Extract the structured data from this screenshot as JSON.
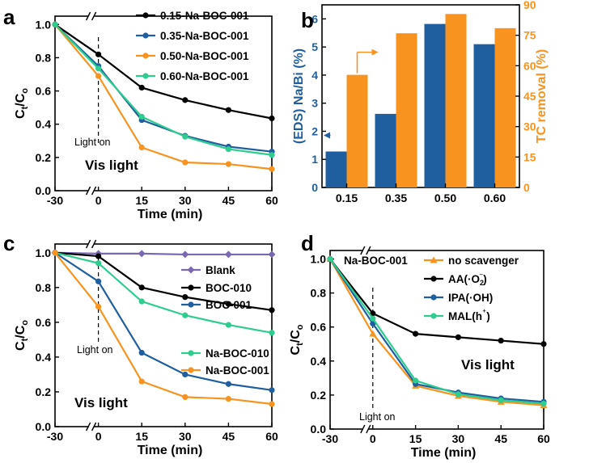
{
  "chart_data": [
    {
      "panel": "a",
      "type": "line",
      "xlabel": "Time (min)",
      "ylabel": "Ct/Co",
      "xticks": [
        "-30",
        "0",
        "15",
        "30",
        "45",
        "60"
      ],
      "yticks": [
        "0.0",
        "0.2",
        "0.4",
        "0.6",
        "0.8",
        "1.0"
      ],
      "xlim": [
        -30,
        60
      ],
      "ylim": [
        0,
        1.05
      ],
      "light_on": "Light on",
      "condition": "Vis light",
      "x": [
        -30,
        0,
        15,
        30,
        45,
        60
      ],
      "series": [
        {
          "name": "0.15-Na-BOC-001",
          "color": "#000000",
          "values": [
            1.0,
            0.82,
            0.62,
            0.545,
            0.485,
            0.435
          ]
        },
        {
          "name": "0.35-Na-BOC-001",
          "color": "#1f5fa0",
          "values": [
            1.0,
            0.75,
            0.425,
            0.33,
            0.265,
            0.235
          ]
        },
        {
          "name": "0.50-Na-BOC-001",
          "color": "#f7931e",
          "values": [
            1.0,
            0.69,
            0.26,
            0.17,
            0.16,
            0.13
          ]
        },
        {
          "name": "0.60-Na-BOC-001",
          "color": "#2ecc8f",
          "values": [
            1.0,
            0.735,
            0.445,
            0.325,
            0.25,
            0.215
          ]
        }
      ]
    },
    {
      "panel": "b",
      "type": "bar",
      "categories": [
        "0.15",
        "0.35",
        "0.50",
        "0.60"
      ],
      "ylabel_left": "(EDS) Na/Bi (%)",
      "ylabel_right": "TC removal (%)",
      "yticks_left": [
        "0",
        "1",
        "2",
        "3",
        "4",
        "5",
        "6"
      ],
      "yticks_right": [
        "0",
        "15",
        "30",
        "45",
        "60",
        "75",
        "90"
      ],
      "ylim_left": [
        0,
        6.5
      ],
      "ylim_right": [
        0,
        90
      ],
      "left_color": "#1f5fa0",
      "right_color": "#f7931e",
      "series": [
        {
          "name": "Na/Bi",
          "axis": "left",
          "values": [
            1.28,
            2.62,
            5.82,
            5.1
          ]
        },
        {
          "name": "TC removal",
          "axis": "right",
          "values": [
            55.5,
            76,
            85.5,
            78.5
          ]
        }
      ]
    },
    {
      "panel": "c",
      "type": "line",
      "xlabel": "Time (min)",
      "ylabel": "Ct/Co",
      "xticks": [
        "-30",
        "0",
        "15",
        "30",
        "45",
        "60"
      ],
      "yticks": [
        "0.0",
        "0.2",
        "0.4",
        "0.6",
        "0.8",
        "1.0"
      ],
      "xlim": [
        -30,
        60
      ],
      "ylim": [
        0,
        1.05
      ],
      "light_on": "Light on",
      "condition": "Vis light",
      "x": [
        -30,
        0,
        15,
        30,
        45,
        60
      ],
      "series": [
        {
          "name": "Blank",
          "color": "#7b68b3",
          "values": [
            1.0,
            0.995,
            0.995,
            0.99,
            0.99,
            0.99
          ]
        },
        {
          "name": "BOC-010",
          "color": "#000000",
          "values": [
            1.0,
            0.98,
            0.8,
            0.745,
            0.705,
            0.67
          ]
        },
        {
          "name": "BOC-001",
          "color": "#1f5fa0",
          "values": [
            1.0,
            0.835,
            0.425,
            0.3,
            0.245,
            0.21
          ]
        },
        {
          "name": "Na-BOC-010",
          "color": "#2ecc8f",
          "values": [
            1.0,
            0.94,
            0.72,
            0.64,
            0.585,
            0.54
          ]
        },
        {
          "name": "Na-BOC-001",
          "color": "#f7931e",
          "values": [
            1.0,
            0.69,
            0.26,
            0.17,
            0.16,
            0.13
          ]
        }
      ]
    },
    {
      "panel": "d",
      "type": "line",
      "title": "Na-BOC-001",
      "xlabel": "Time (min)",
      "ylabel": "Ct/Co",
      "xticks": [
        "-30",
        "0",
        "15",
        "30",
        "45",
        "60"
      ],
      "yticks": [
        "0.0",
        "0.2",
        "0.4",
        "0.6",
        "0.8",
        "1.0"
      ],
      "xlim": [
        -30,
        60
      ],
      "ylim": [
        0,
        1.05
      ],
      "light_on": "Light on",
      "condition": "Vis light",
      "x": [
        -30,
        0,
        15,
        30,
        45,
        60
      ],
      "series": [
        {
          "name": "no scavenger",
          "color": "#f7931e",
          "marker": "triangle",
          "values": [
            1.0,
            0.56,
            0.255,
            0.195,
            0.16,
            0.14
          ]
        },
        {
          "name": "AA(·O2⁻)",
          "color": "#000000",
          "marker": "circle",
          "values": [
            1.0,
            0.68,
            0.56,
            0.54,
            0.52,
            0.5
          ]
        },
        {
          "name": "IPA(·OH)",
          "color": "#1f5fa0",
          "marker": "circle",
          "values": [
            1.0,
            0.62,
            0.265,
            0.215,
            0.18,
            0.16
          ]
        },
        {
          "name": "MAL(h⁺)",
          "color": "#2ecc8f",
          "marker": "circle",
          "values": [
            1.0,
            0.65,
            0.285,
            0.205,
            0.17,
            0.15
          ]
        }
      ]
    }
  ]
}
